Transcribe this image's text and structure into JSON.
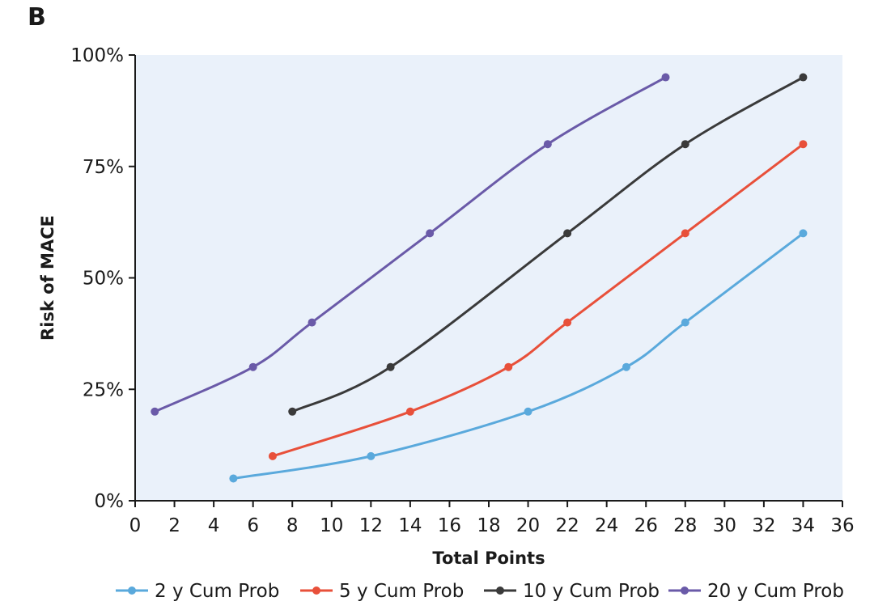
{
  "panel_label": "B",
  "chart_data": {
    "type": "line",
    "xlabel": "Total Points",
    "ylabel": "Risk of MACE",
    "xlim": [
      0,
      36
    ],
    "ylim": [
      0,
      100
    ],
    "x_ticks": [
      0,
      2,
      4,
      6,
      8,
      10,
      12,
      14,
      16,
      18,
      20,
      22,
      24,
      26,
      28,
      30,
      32,
      34,
      36
    ],
    "y_ticks": [
      0,
      25,
      50,
      75,
      100
    ],
    "y_tick_labels": [
      "0%",
      "25%",
      "50%",
      "75%",
      "100%"
    ],
    "plot_background": "#eaf1fa",
    "grid": false,
    "legend_position": "bottom",
    "series": [
      {
        "name": "2 y Cum Prob",
        "color": "#5aa9dc",
        "points": [
          [
            5,
            5
          ],
          [
            12,
            10
          ],
          [
            20,
            20
          ],
          [
            25,
            30
          ],
          [
            28,
            40
          ],
          [
            34,
            60
          ]
        ]
      },
      {
        "name": "5 y Cum Prob",
        "color": "#e8503a",
        "points": [
          [
            7,
            10
          ],
          [
            14,
            20
          ],
          [
            19,
            30
          ],
          [
            22,
            40
          ],
          [
            28,
            60
          ],
          [
            34,
            80
          ]
        ]
      },
      {
        "name": "10 y Cum Prob",
        "color": "#3a3a3a",
        "points": [
          [
            8,
            20
          ],
          [
            13,
            30
          ],
          [
            22,
            60
          ],
          [
            28,
            80
          ],
          [
            34,
            95
          ]
        ]
      },
      {
        "name": "20 y Cum Prob",
        "color": "#6a5aa8",
        "points": [
          [
            1,
            20
          ],
          [
            6,
            30
          ],
          [
            9,
            40
          ],
          [
            15,
            60
          ],
          [
            21,
            80
          ],
          [
            27,
            95
          ]
        ]
      }
    ]
  }
}
